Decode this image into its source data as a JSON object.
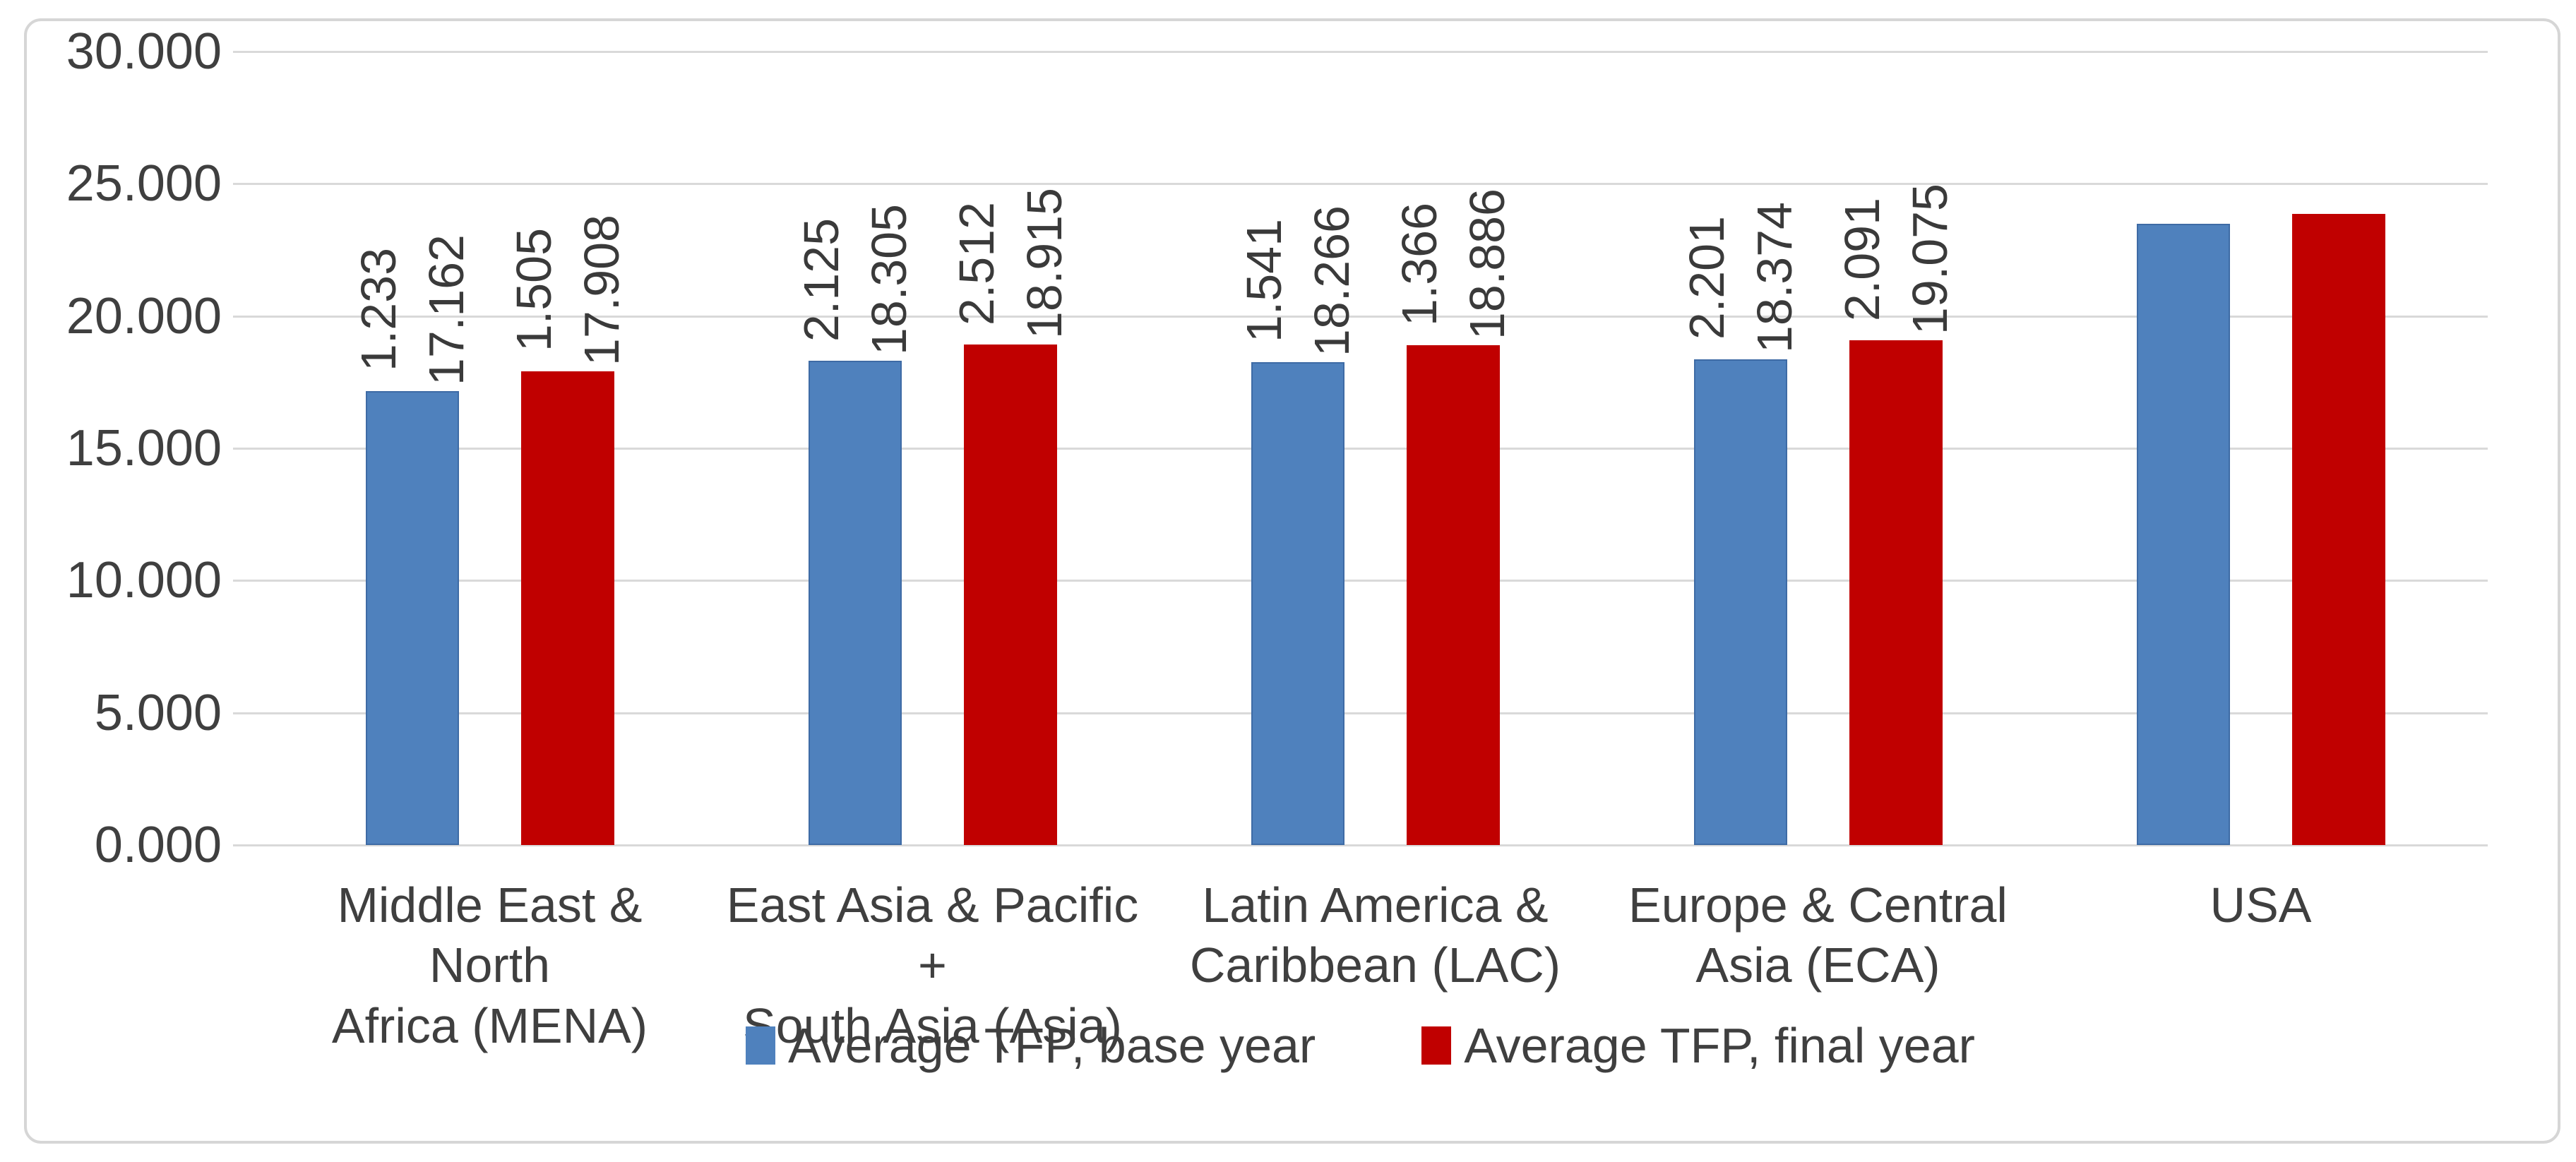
{
  "chart_data": {
    "type": "bar",
    "title": "",
    "categories": [
      [
        "Middle East & North",
        "Africa (MENA)"
      ],
      [
        "East Asia & Pacific +",
        "South Asia (Asia)"
      ],
      [
        "Latin America &",
        "Caribbean (LAC)"
      ],
      [
        "Europe & Central",
        "Asia (ECA)"
      ],
      [
        "USA"
      ]
    ],
    "series": [
      {
        "name": "Average TFP, base year",
        "color": "#4F81BD",
        "values": [
          17.162,
          18.305,
          18.266,
          18.374,
          23.5
        ],
        "data_labels": [
          [
            "1.233",
            "17.162"
          ],
          [
            "2.125",
            "18.305"
          ],
          [
            "1.541",
            "18.266"
          ],
          [
            "2.201",
            "18.374"
          ],
          null
        ]
      },
      {
        "name": "Average TFP, final year",
        "color": "#C00000",
        "values": [
          17.908,
          18.915,
          18.886,
          19.075,
          23.85
        ],
        "data_labels": [
          [
            "1.505",
            "17.908"
          ],
          [
            "2.512",
            "18.915"
          ],
          [
            "1.366",
            "18.886"
          ],
          [
            "2.091",
            "19.075"
          ],
          null
        ]
      }
    ],
    "y_axis": {
      "min": 0,
      "max": 30,
      "step": 5,
      "tick_labels": [
        "30.000",
        "25.000",
        "20.000",
        "15.000",
        "10.000",
        "5.000",
        "0.000"
      ]
    },
    "grid": true,
    "legend_position": "bottom"
  },
  "colors": {
    "grid": "#D9D9D9",
    "frame_border": "#D6D6D6",
    "text": "#3F3F3F",
    "bar_base_year": "#4F81BD",
    "bar_final_year": "#C00000"
  }
}
